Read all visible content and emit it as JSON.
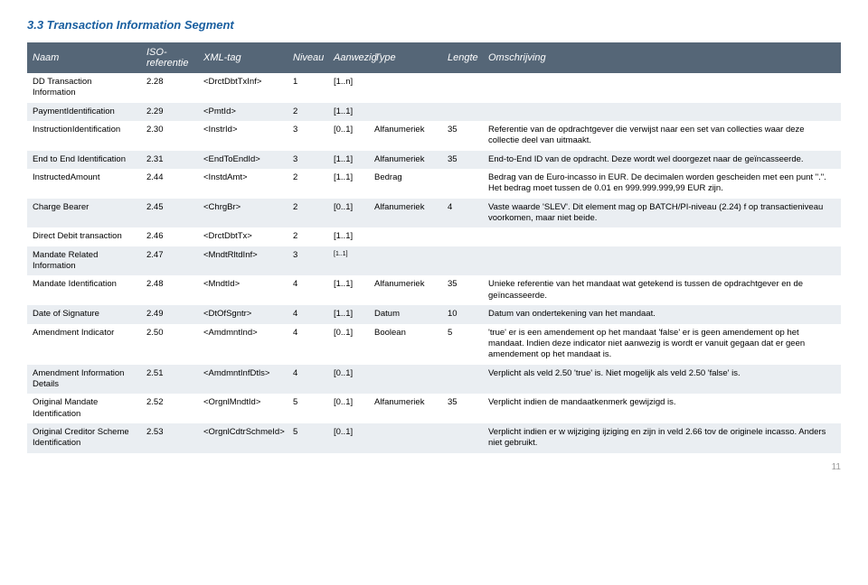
{
  "section_title": "3.3   Transaction Information Segment",
  "columns": [
    "Naam",
    "ISO-referentie",
    "XML-tag",
    "Niveau",
    "Aanwezig",
    "Type",
    "Lengte",
    "Omschrijving"
  ],
  "rows": [
    {
      "naam": "DD Transaction Information",
      "iso": "2.28",
      "xml": "<DrctDbtTxInf>",
      "niv": "1",
      "aan": "[1..n]",
      "type": "",
      "len": "",
      "oms": ""
    },
    {
      "naam": "PaymentIdentification",
      "iso": "2.29",
      "xml": "<PmtId>",
      "niv": "2",
      "aan": "[1..1]",
      "type": "",
      "len": "",
      "oms": ""
    },
    {
      "naam": "InstructionIdentification",
      "iso": "2.30",
      "xml": "<InstrId>",
      "niv": "3",
      "aan": "[0..1]",
      "type": "Alfanumeriek",
      "len": "35",
      "oms": "Referentie van de opdrachtgever die verwijst naar een set van collecties waar deze collectie deel van uitmaakt."
    },
    {
      "naam": "End to End Identification",
      "iso": "2.31",
      "xml": "<EndToEndId>",
      "niv": "3",
      "aan": "[1..1]",
      "type": "Alfanumeriek",
      "len": "35",
      "oms": "End-to-End ID van de opdracht. Deze wordt wel doorgezet naar de geïncasseerde."
    },
    {
      "naam": "InstructedAmount",
      "iso": "2.44",
      "xml": "<InstdAmt>",
      "niv": "2",
      "aan": "[1..1]",
      "type": "Bedrag",
      "len": "",
      "oms": "Bedrag van de Euro-incasso in EUR. De decimalen worden gescheiden met een punt \".\". Het bedrag moet tussen de 0.01 en 999.999.999,99 EUR zijn."
    },
    {
      "naam": "Charge Bearer",
      "iso": "2.45",
      "xml": "<ChrgBr>",
      "niv": "2",
      "aan": "[0..1]",
      "type": "Alfanumeriek",
      "len": "4",
      "oms": "Vaste waarde 'SLEV'. Dit element mag op BATCH/PI-niveau (2.24)  f op transactieniveau voorkomen, maar niet beide."
    },
    {
      "naam": "Direct Debit transaction",
      "iso": "2.46",
      "xml": "<DrctDbtTx>",
      "niv": "2",
      "aan": "[1..1]",
      "type": "",
      "len": "",
      "oms": ""
    },
    {
      "naam": "Mandate Related Information",
      "iso": "2.47",
      "xml": "<MndtRltdInf>",
      "niv": "3",
      "aan": "[1..1]",
      "type": "",
      "len": "",
      "oms": "",
      "aan_small": true
    },
    {
      "naam": "Mandate Identification",
      "iso": "2.48",
      "xml": "<MndtId>",
      "niv": "4",
      "aan": "[1..1]",
      "type": "Alfanumeriek",
      "len": "35",
      "oms": "Unieke referentie van het mandaat wat getekend is tussen de opdrachtgever en de geïncasseerde."
    },
    {
      "naam": "Date of Signature",
      "iso": "2.49",
      "xml": "<DtOfSgntr>",
      "niv": "4",
      "aan": "[1..1]",
      "type": "Datum",
      "len": "10",
      "oms": "Datum van ondertekening van het mandaat."
    },
    {
      "naam": "Amendment Indicator",
      "iso": "2.50",
      "xml": "<AmdmntInd>",
      "niv": "4",
      "aan": "[0..1]",
      "type": "Boolean",
      "len": "5",
      "oms": "'true' er is een amendement op het mandaat 'false' er is geen amendement op het mandaat. Indien deze indicator niet aanwezig is wordt er vanuit gegaan dat er geen amendement op het mandaat is."
    },
    {
      "naam": "Amendment Information Details",
      "iso": "2.51",
      "xml": "<AmdmntInfDtls>",
      "niv": "4",
      "aan": "[0..1]",
      "type": "",
      "len": "",
      "oms": "Verplicht als veld 2.50 'true' is. Niet mogelijk als veld 2.50 'false' is."
    },
    {
      "naam": "Original Mandate Identification",
      "iso": "2.52",
      "xml": "<OrgnlMndtId>",
      "niv": "5",
      "aan": "[0..1]",
      "type": "Alfanumeriek",
      "len": "35",
      "oms": "Verplicht indien de mandaatkenmerk gewijzigd is."
    },
    {
      "naam": "Original Creditor Scheme Identification",
      "iso": "2.53",
      "xml": "<OrgnlCdtrSchmeId>",
      "niv": "5",
      "aan": "[0..1]",
      "type": "",
      "len": "",
      "oms": "Verplicht indien er w wijziging ijziging en zijn in veld 2.66 tov de originele incasso. Anders niet gebruikt."
    }
  ],
  "page_number": "11"
}
